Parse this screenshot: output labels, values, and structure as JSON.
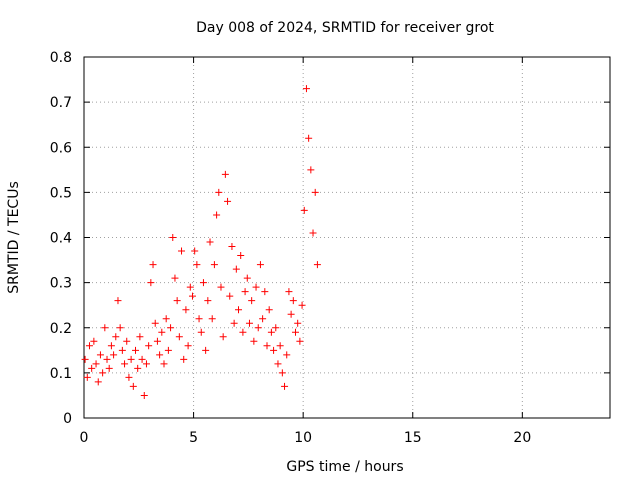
{
  "chart_data": {
    "type": "scatter",
    "title": "Day 008 of 2024, SRMTID for receiver grot",
    "xlabel": "GPS time / hours",
    "ylabel": "SRMTID / TECUs",
    "xlim": [
      0,
      24
    ],
    "ylim": [
      0,
      0.8
    ],
    "xticks": [
      0,
      5,
      10,
      15,
      20
    ],
    "yticks": [
      0,
      0.1,
      0.2,
      0.3,
      0.4,
      0.5,
      0.6,
      0.7,
      0.8
    ],
    "xtick_labels": [
      "0",
      "5",
      "10",
      "15",
      "20"
    ],
    "ytick_labels": [
      "0",
      "0.1",
      "0.2",
      "0.3",
      "0.4",
      "0.5",
      "0.6",
      "0.7",
      "0.8"
    ],
    "grid": true,
    "marker": "+",
    "color": "#ff0000",
    "series": [
      {
        "name": "SRMTID",
        "points": [
          [
            0.05,
            0.13
          ],
          [
            0.15,
            0.09
          ],
          [
            0.25,
            0.16
          ],
          [
            0.35,
            0.11
          ],
          [
            0.45,
            0.17
          ],
          [
            0.55,
            0.12
          ],
          [
            0.65,
            0.08
          ],
          [
            0.75,
            0.14
          ],
          [
            0.85,
            0.1
          ],
          [
            0.95,
            0.2
          ],
          [
            1.05,
            0.13
          ],
          [
            1.15,
            0.11
          ],
          [
            1.25,
            0.16
          ],
          [
            1.35,
            0.14
          ],
          [
            1.45,
            0.18
          ],
          [
            1.55,
            0.26
          ],
          [
            1.65,
            0.2
          ],
          [
            1.75,
            0.15
          ],
          [
            1.85,
            0.12
          ],
          [
            1.95,
            0.17
          ],
          [
            2.05,
            0.09
          ],
          [
            2.15,
            0.13
          ],
          [
            2.25,
            0.07
          ],
          [
            2.35,
            0.15
          ],
          [
            2.45,
            0.11
          ],
          [
            2.55,
            0.18
          ],
          [
            2.65,
            0.13
          ],
          [
            2.75,
            0.05
          ],
          [
            2.85,
            0.12
          ],
          [
            2.95,
            0.16
          ],
          [
            3.05,
            0.3
          ],
          [
            3.15,
            0.34
          ],
          [
            3.25,
            0.21
          ],
          [
            3.35,
            0.17
          ],
          [
            3.45,
            0.14
          ],
          [
            3.55,
            0.19
          ],
          [
            3.65,
            0.12
          ],
          [
            3.75,
            0.22
          ],
          [
            3.85,
            0.15
          ],
          [
            3.95,
            0.2
          ],
          [
            4.05,
            0.4
          ],
          [
            4.15,
            0.31
          ],
          [
            4.25,
            0.26
          ],
          [
            4.35,
            0.18
          ],
          [
            4.45,
            0.37
          ],
          [
            4.55,
            0.13
          ],
          [
            4.65,
            0.24
          ],
          [
            4.75,
            0.16
          ],
          [
            4.85,
            0.29
          ],
          [
            4.95,
            0.27
          ],
          [
            5.05,
            0.37
          ],
          [
            5.15,
            0.34
          ],
          [
            5.25,
            0.22
          ],
          [
            5.35,
            0.19
          ],
          [
            5.45,
            0.3
          ],
          [
            5.55,
            0.15
          ],
          [
            5.65,
            0.26
          ],
          [
            5.75,
            0.39
          ],
          [
            5.85,
            0.22
          ],
          [
            5.95,
            0.34
          ],
          [
            6.05,
            0.45
          ],
          [
            6.15,
            0.5
          ],
          [
            6.25,
            0.29
          ],
          [
            6.35,
            0.18
          ],
          [
            6.45,
            0.54
          ],
          [
            6.55,
            0.48
          ],
          [
            6.65,
            0.27
          ],
          [
            6.75,
            0.38
          ],
          [
            6.85,
            0.21
          ],
          [
            6.95,
            0.33
          ],
          [
            7.05,
            0.24
          ],
          [
            7.15,
            0.36
          ],
          [
            7.25,
            0.19
          ],
          [
            7.35,
            0.28
          ],
          [
            7.45,
            0.31
          ],
          [
            7.55,
            0.21
          ],
          [
            7.65,
            0.26
          ],
          [
            7.75,
            0.17
          ],
          [
            7.85,
            0.29
          ],
          [
            7.95,
            0.2
          ],
          [
            8.05,
            0.34
          ],
          [
            8.15,
            0.22
          ],
          [
            8.25,
            0.28
          ],
          [
            8.35,
            0.16
          ],
          [
            8.45,
            0.24
          ],
          [
            8.55,
            0.19
          ],
          [
            8.65,
            0.15
          ],
          [
            8.75,
            0.2
          ],
          [
            8.85,
            0.12
          ],
          [
            8.95,
            0.16
          ],
          [
            9.05,
            0.1
          ],
          [
            9.15,
            0.07
          ],
          [
            9.25,
            0.14
          ],
          [
            9.35,
            0.28
          ],
          [
            9.45,
            0.23
          ],
          [
            9.55,
            0.26
          ],
          [
            9.65,
            0.19
          ],
          [
            9.75,
            0.21
          ],
          [
            9.85,
            0.17
          ],
          [
            9.95,
            0.25
          ],
          [
            10.05,
            0.46
          ],
          [
            10.15,
            0.73
          ],
          [
            10.25,
            0.62
          ],
          [
            10.35,
            0.55
          ],
          [
            10.45,
            0.41
          ],
          [
            10.55,
            0.5
          ],
          [
            10.65,
            0.34
          ]
        ]
      }
    ]
  }
}
